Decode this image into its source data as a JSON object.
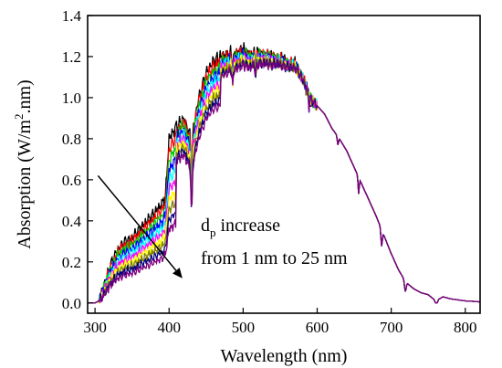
{
  "chart_data": {
    "type": "line",
    "title": "",
    "xlabel": "Wavelength (nm)",
    "ylabel_parts": {
      "main": "Absorption (W/m",
      "sup": "2",
      "tail": ".nm)"
    },
    "xlim": [
      290,
      820
    ],
    "ylim": [
      -0.05,
      1.4
    ],
    "x_ticks": [
      300,
      400,
      500,
      600,
      700,
      800
    ],
    "y_ticks": [
      0.0,
      0.2,
      0.4,
      0.6,
      0.8,
      1.0,
      1.2,
      1.4
    ],
    "grid": false,
    "legend": "none",
    "annotation": {
      "line1_main": "d",
      "line1_sub": "p",
      "line1_rest": " increase",
      "line2": "from 1 nm to 25 nm",
      "arrow_from": [
        304,
        0.62
      ],
      "arrow_to": [
        418,
        0.12
      ]
    },
    "series": [
      {
        "color": "#000000",
        "scale": 1.0
      },
      {
        "color": "#ff0000",
        "scale": 0.99
      },
      {
        "color": "#00cc00",
        "scale": 0.98
      },
      {
        "color": "#0000ff",
        "scale": 0.97
      },
      {
        "color": "#00ffff",
        "scale": 0.96
      },
      {
        "color": "#ff00ff",
        "scale": 0.95
      },
      {
        "color": "#ffff00",
        "scale": 0.94
      },
      {
        "color": "#808000",
        "scale": 0.93
      },
      {
        "color": "#000080",
        "scale": 0.92
      },
      {
        "color": "#800080",
        "scale": 0.91
      }
    ],
    "envelope": [
      [
        290,
        0.0
      ],
      [
        300,
        0.0
      ],
      [
        305,
        0.01
      ],
      [
        310,
        0.06
      ],
      [
        320,
        0.18
      ],
      [
        330,
        0.26
      ],
      [
        340,
        0.3
      ],
      [
        350,
        0.32
      ],
      [
        360,
        0.36
      ],
      [
        370,
        0.4
      ],
      [
        380,
        0.44
      ],
      [
        390,
        0.48
      ],
      [
        395,
        0.52
      ],
      [
        400,
        0.8
      ],
      [
        410,
        0.86
      ],
      [
        420,
        0.9
      ],
      [
        430,
        0.8
      ],
      [
        440,
        1.0
      ],
      [
        450,
        1.12
      ],
      [
        460,
        1.18
      ],
      [
        470,
        1.2
      ],
      [
        480,
        1.21
      ],
      [
        490,
        1.22
      ],
      [
        500,
        1.23
      ],
      [
        510,
        1.21
      ],
      [
        520,
        1.22
      ],
      [
        530,
        1.21
      ],
      [
        540,
        1.2
      ],
      [
        550,
        1.19
      ],
      [
        560,
        1.17
      ],
      [
        570,
        1.16
      ],
      [
        580,
        1.1
      ],
      [
        590,
        1.0
      ],
      [
        600,
        0.96
      ],
      [
        610,
        0.92
      ],
      [
        620,
        0.85
      ],
      [
        630,
        0.8
      ],
      [
        640,
        0.74
      ],
      [
        650,
        0.66
      ],
      [
        660,
        0.58
      ],
      [
        670,
        0.5
      ],
      [
        680,
        0.42
      ],
      [
        690,
        0.33
      ],
      [
        700,
        0.24
      ],
      [
        710,
        0.16
      ],
      [
        720,
        0.1
      ],
      [
        730,
        0.07
      ],
      [
        740,
        0.05
      ],
      [
        750,
        0.04
      ],
      [
        760,
        0.01
      ],
      [
        770,
        0.03
      ],
      [
        780,
        0.02
      ],
      [
        790,
        0.015
      ],
      [
        800,
        0.01
      ],
      [
        810,
        0.008
      ],
      [
        820,
        0.005
      ]
    ]
  }
}
